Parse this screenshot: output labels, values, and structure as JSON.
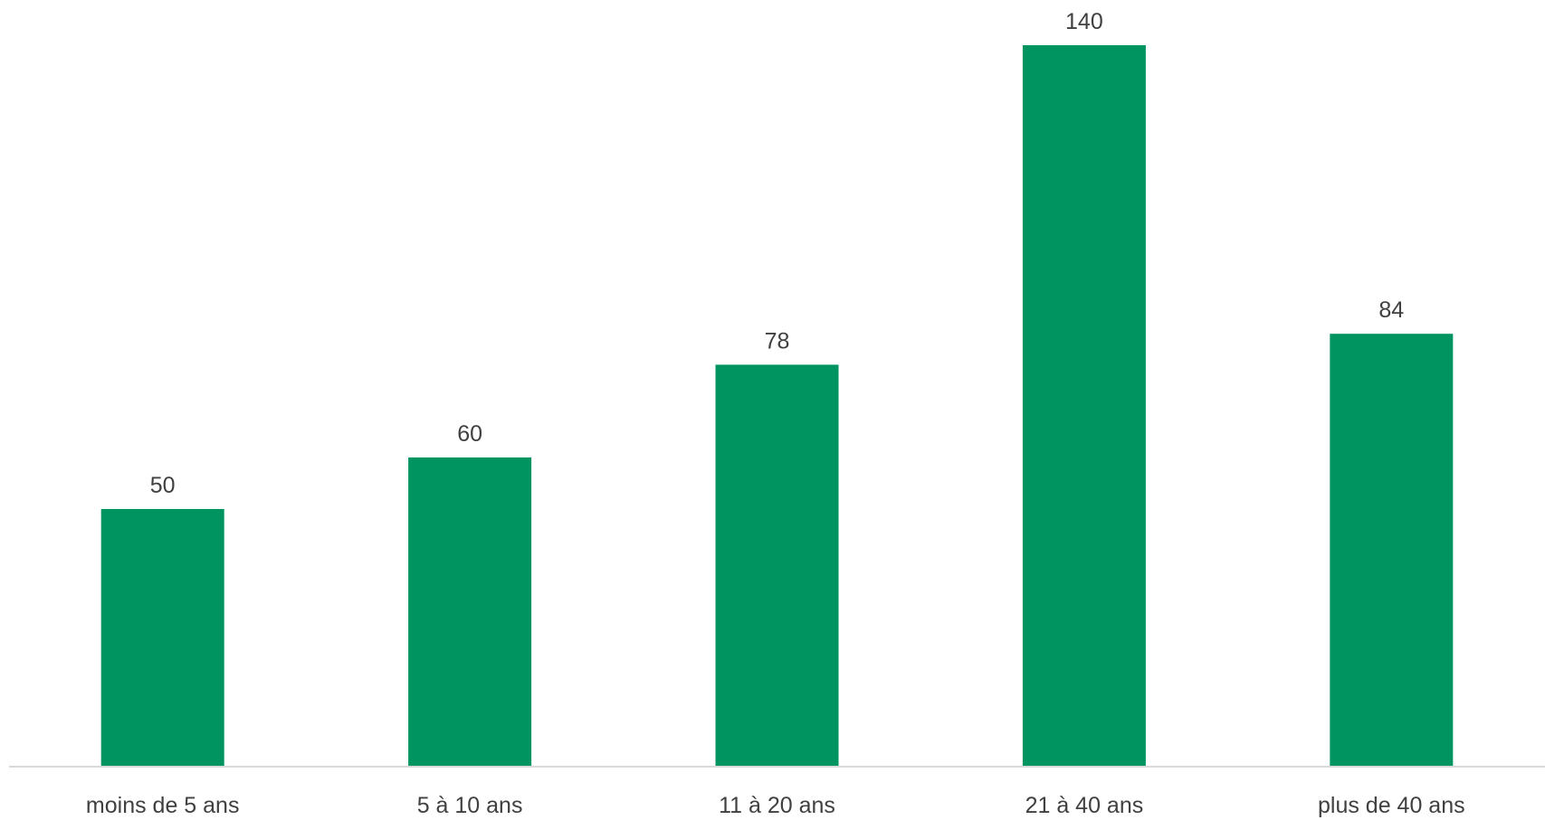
{
  "chart_data": {
    "type": "bar",
    "categories": [
      "moins de 5 ans",
      "5 à 10 ans",
      "11 à 20 ans",
      "21 à 40 ans",
      "plus de 40 ans"
    ],
    "values": [
      50,
      60,
      78,
      140,
      84
    ],
    "data_labels": [
      "50",
      "60",
      "78",
      "140",
      "84"
    ],
    "title": "",
    "xlabel": "",
    "ylabel": "",
    "ylim": [
      0,
      140
    ],
    "grid": false,
    "legend": "none",
    "bar_color": "#009460",
    "axis_color": "#d9d9d9",
    "text_color": "#404040"
  }
}
